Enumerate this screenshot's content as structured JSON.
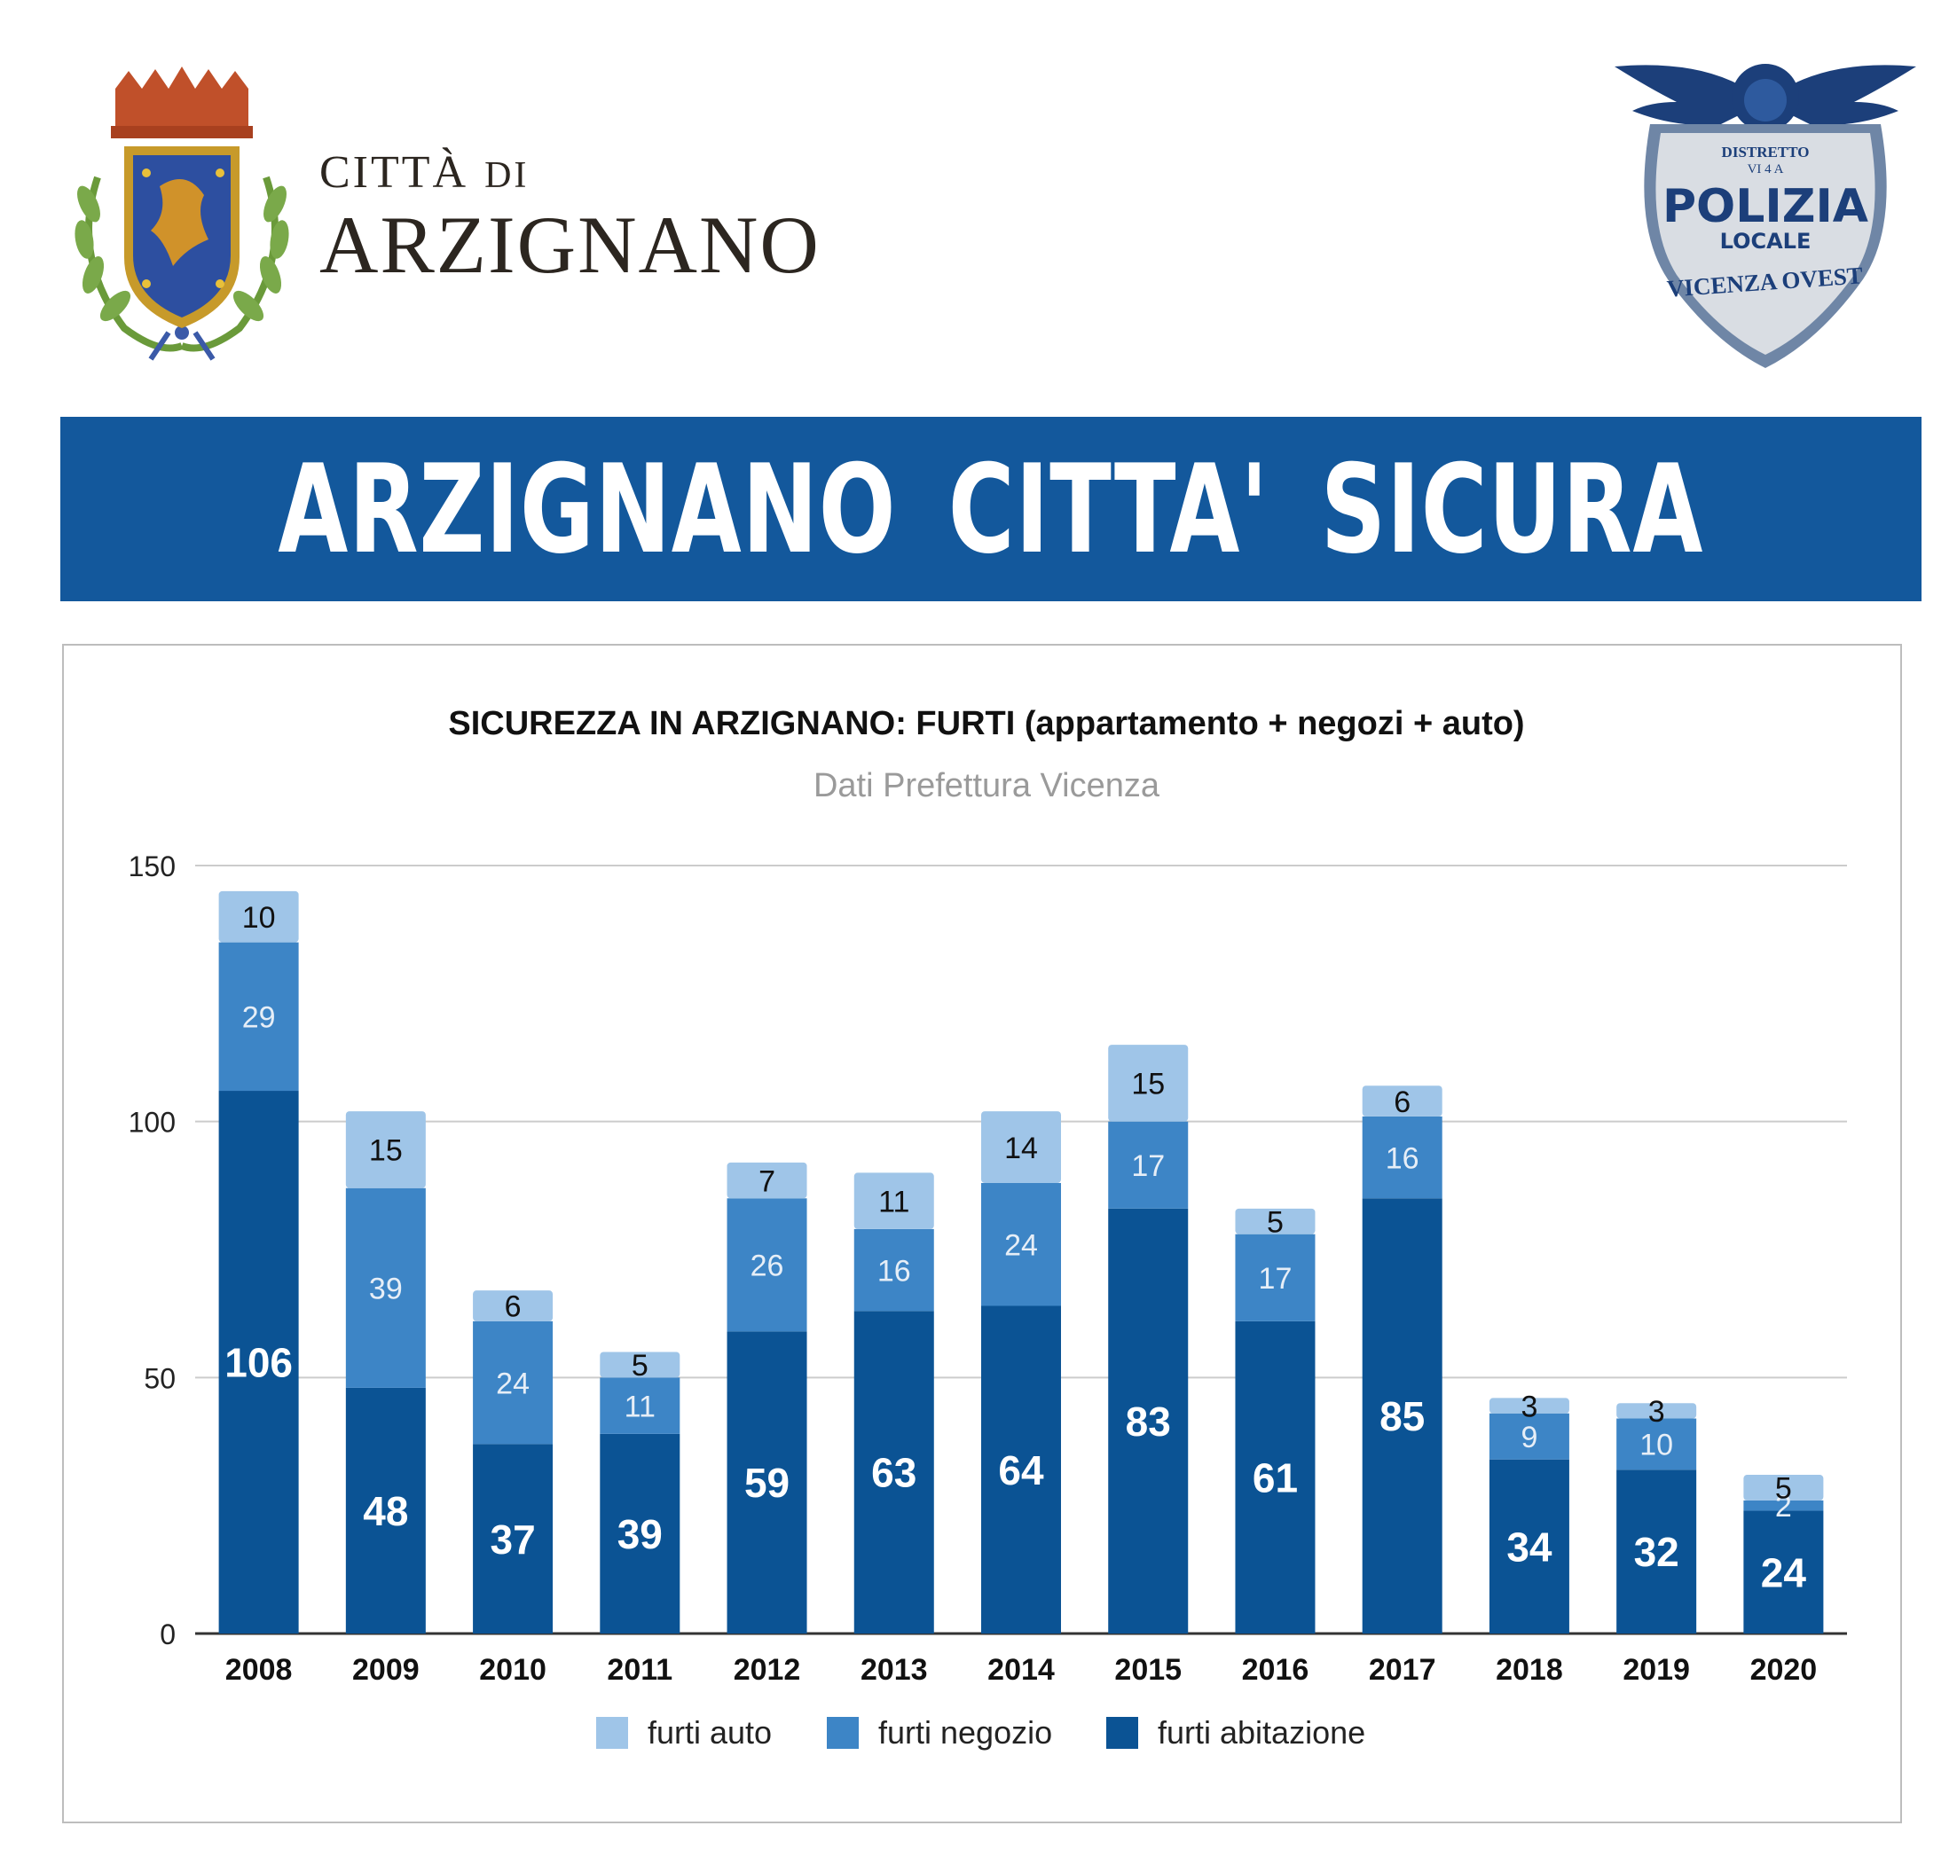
{
  "header": {
    "city_prefix": "CITTÀ",
    "city_di": "DI",
    "city_name": "ARZIGNANO",
    "badge_line1": "DISTRETTO",
    "badge_line2": "VI 4 A",
    "badge_line3": "POLIZIA",
    "badge_line4": "LOCALE",
    "badge_line5": "VICENZA OVEST"
  },
  "banner": {
    "title": "ARZIGNANO  CITTA'  SICURA"
  },
  "colors": {
    "banner": "#13589c",
    "furti_auto": "#9fc5e8",
    "furti_negozio": "#3d85c6",
    "furti_abitazione": "#0b5394"
  },
  "chart_data": {
    "type": "bar",
    "stacked": true,
    "title": "SICUREZZA IN ARZIGNANO: FURTI (appartamento + negozi + auto)",
    "subtitle": "Dati Prefettura Vicenza",
    "xlabel": "",
    "ylabel": "",
    "ylim": [
      0,
      150
    ],
    "yticks": [
      "0",
      "50",
      "100",
      "150"
    ],
    "grid": true,
    "legend_position": "bottom",
    "categories": [
      "2008",
      "2009",
      "2010",
      "2011",
      "2012",
      "2013",
      "2014",
      "2015",
      "2016",
      "2017",
      "2018",
      "2019",
      "2020"
    ],
    "series": [
      {
        "name": "furti abitazione",
        "color": "#0b5394",
        "values": [
          106,
          48,
          37,
          39,
          59,
          63,
          64,
          83,
          61,
          85,
          34,
          32,
          24
        ]
      },
      {
        "name": "furti negozio",
        "color": "#3d85c6",
        "values": [
          29,
          39,
          24,
          11,
          26,
          16,
          24,
          17,
          17,
          16,
          9,
          10,
          2
        ]
      },
      {
        "name": "furti auto",
        "color": "#9fc5e8",
        "values": [
          10,
          15,
          6,
          5,
          7,
          11,
          14,
          15,
          5,
          6,
          3,
          3,
          5
        ]
      }
    ],
    "legend_order": [
      "furti auto",
      "furti negozio",
      "furti abitazione"
    ]
  }
}
